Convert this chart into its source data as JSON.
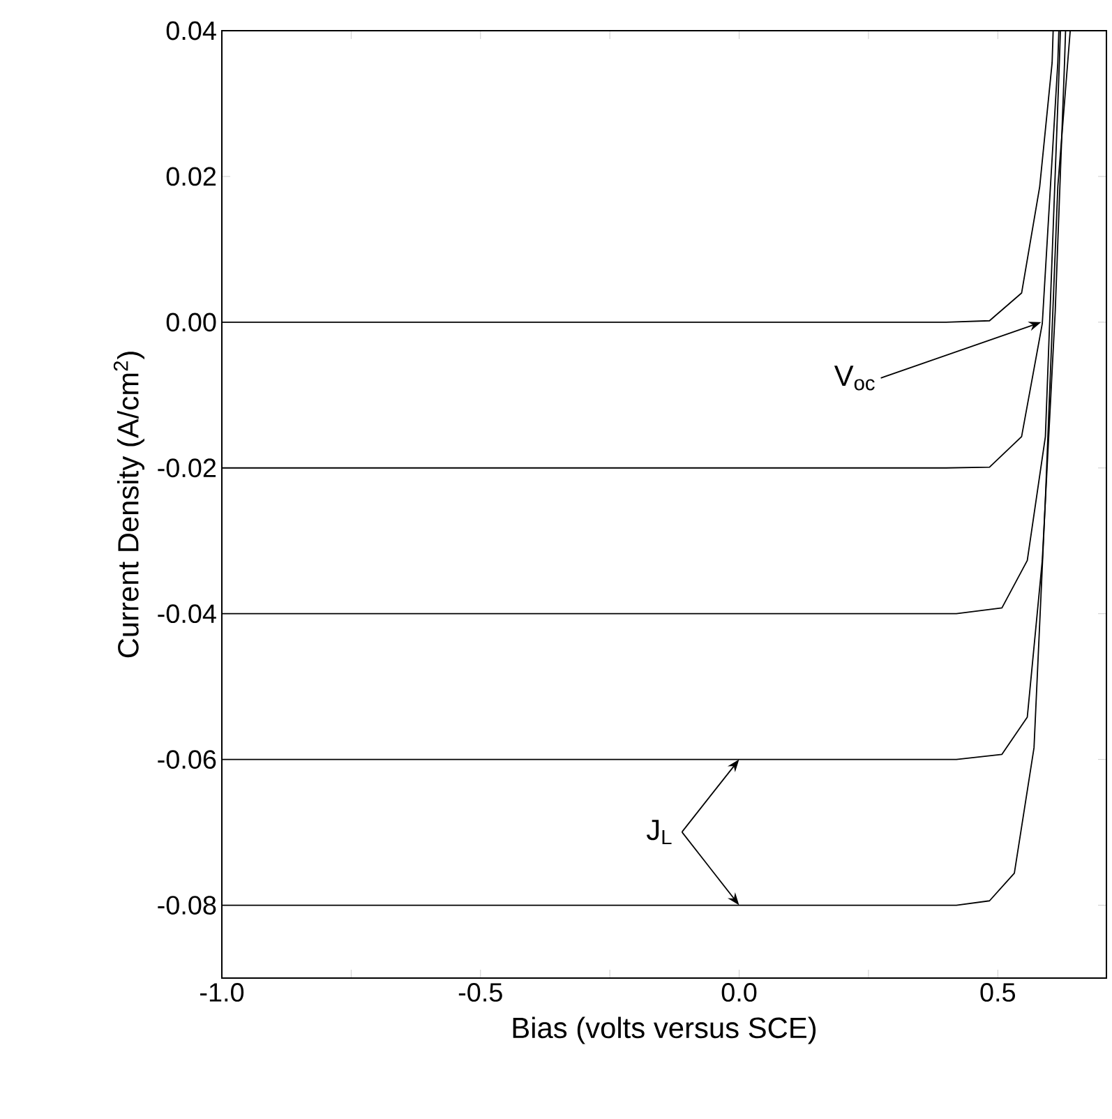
{
  "chart_data": {
    "type": "line",
    "xlabel": "Bias (volts versus SCE)",
    "ylabel": "Current Density (A/cm$^{2}$)",
    "xlim": [
      -1.0,
      0.71
    ],
    "ylim": [
      -0.09,
      0.04
    ],
    "xticks": [
      {
        "value": -1.0,
        "label": "-1.0"
      },
      {
        "value": -0.75,
        "label": null
      },
      {
        "value": -0.5,
        "label": "-0.5"
      },
      {
        "value": -0.25,
        "label": null
      },
      {
        "value": 0.0,
        "label": "0.0"
      },
      {
        "value": 0.25,
        "label": null
      },
      {
        "value": 0.5,
        "label": "0.5"
      }
    ],
    "yticks": [
      {
        "value": -0.08,
        "label": "-0.08"
      },
      {
        "value": -0.06,
        "label": "-0.06"
      },
      {
        "value": -0.04,
        "label": "-0.04"
      },
      {
        "value": -0.02,
        "label": "-0.02"
      },
      {
        "value": 0.0,
        "label": "0.00"
      },
      {
        "value": 0.02,
        "label": "0.02"
      },
      {
        "value": 0.04,
        "label": "0.04"
      }
    ],
    "marker": "none",
    "line_style": "solid",
    "series": [
      {
        "color": "#000000",
        "x": [
          -1.0,
          0.4,
          0.484,
          0.546,
          0.581,
          0.605,
          0.607
        ],
        "values": [
          0.0,
          0.0,
          0.0002,
          0.004,
          0.0186,
          0.0356,
          0.04
        ]
      },
      {
        "color": "#000000",
        "x": [
          -1.0,
          0.4,
          0.484,
          0.546,
          0.586,
          0.616,
          0.618
        ],
        "values": [
          -0.02,
          -0.02,
          -0.0199,
          -0.0157,
          -0.0002,
          0.0356,
          0.04
        ]
      },
      {
        "color": "#000000",
        "x": [
          -1.0,
          0.42,
          0.508,
          0.557,
          0.592,
          0.619,
          0.621
        ],
        "values": [
          -0.04,
          -0.04,
          -0.0392,
          -0.0327,
          -0.0157,
          0.0356,
          0.04
        ]
      },
      {
        "color": "#000000",
        "x": [
          -1.0,
          0.42,
          0.508,
          0.557,
          0.586,
          0.611,
          0.629,
          0.631
        ],
        "values": [
          -0.06,
          -0.06,
          -0.0593,
          -0.0542,
          -0.0327,
          0.0015,
          0.0356,
          0.04
        ]
      },
      {
        "color": "#000000",
        "x": [
          -1.0,
          0.42,
          0.484,
          0.532,
          0.57,
          0.592,
          0.616,
          0.64
        ],
        "values": [
          -0.08,
          -0.08,
          -0.0794,
          -0.0756,
          -0.0584,
          -0.0243,
          0.0186,
          0.04
        ]
      }
    ],
    "annotations": [
      {
        "text": "V$_{oc}$",
        "x": 0.584,
        "y": 0.0
      },
      {
        "text": "J$_{L}$",
        "x": 0.0,
        "y": -0.06
      }
    ]
  }
}
